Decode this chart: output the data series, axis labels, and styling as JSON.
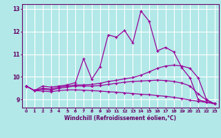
{
  "xlabel": "Windchill (Refroidissement éolien,°C)",
  "x_ticks": [
    0,
    1,
    2,
    3,
    4,
    5,
    6,
    7,
    8,
    9,
    10,
    11,
    12,
    13,
    14,
    15,
    16,
    17,
    18,
    19,
    20,
    21,
    22,
    23
  ],
  "line1_y": [
    9.6,
    9.4,
    9.6,
    9.55,
    9.6,
    9.65,
    9.75,
    10.8,
    9.9,
    10.45,
    11.85,
    11.75,
    12.05,
    11.5,
    12.9,
    12.45,
    11.15,
    11.3,
    11.1,
    10.4,
    9.95,
    9.0,
    8.9,
    8.82
  ],
  "line2_y": [
    9.6,
    9.4,
    9.5,
    9.47,
    9.55,
    9.6,
    9.65,
    9.65,
    9.67,
    9.72,
    9.8,
    9.85,
    9.92,
    9.97,
    10.08,
    10.22,
    10.38,
    10.48,
    10.52,
    10.48,
    10.38,
    9.95,
    9.0,
    8.82
  ],
  "line3_y": [
    9.6,
    9.4,
    9.46,
    9.42,
    9.5,
    9.55,
    9.6,
    9.6,
    9.6,
    9.62,
    9.67,
    9.72,
    9.77,
    9.8,
    9.82,
    9.84,
    9.86,
    9.84,
    9.8,
    9.73,
    9.6,
    9.25,
    8.98,
    8.82
  ],
  "line4_y": [
    9.6,
    9.4,
    9.38,
    9.35,
    9.4,
    9.43,
    9.43,
    9.42,
    9.4,
    9.38,
    9.35,
    9.33,
    9.3,
    9.27,
    9.24,
    9.22,
    9.18,
    9.15,
    9.1,
    9.05,
    8.98,
    8.93,
    8.88,
    8.82
  ],
  "line_color": "#990099",
  "bg_color": "#b2e8e8",
  "grid_color": "#cceeee",
  "ylim": [
    8.65,
    13.2
  ],
  "yticks": [
    9,
    10,
    11,
    12,
    13
  ]
}
